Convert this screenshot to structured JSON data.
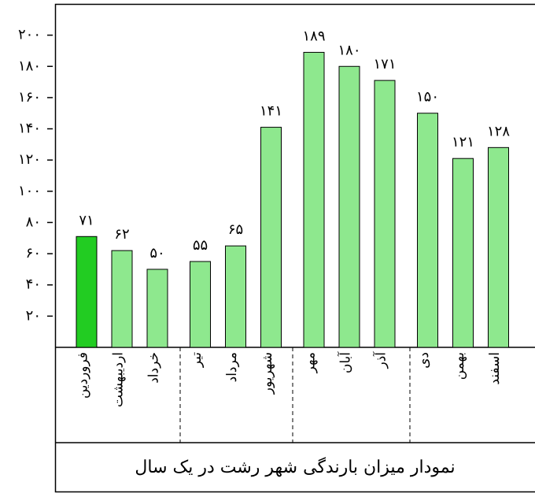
{
  "chart_data": {
    "type": "bar",
    "title": "نمودار میزان بارندگی شهر رشت در یک سال",
    "categories": [
      "فروردین",
      "اردیبهشت",
      "خرداد",
      "تیر",
      "مرداد",
      "شهریور",
      "مهر",
      "آبان",
      "آذر",
      "دی",
      "بهمن",
      "اسفند"
    ],
    "values": [
      71,
      62,
      50,
      55,
      65,
      141,
      189,
      180,
      171,
      150,
      121,
      128
    ],
    "value_labels": [
      "۷۱",
      "۶۲",
      "۵۰",
      "۵۵",
      "۶۵",
      "۱۴۱",
      "۱۸۹",
      "۱۸۰",
      "۱۷۱",
      "۱۵۰",
      "۱۲۱",
      "۱۲۸"
    ],
    "colors": [
      "#22cc22",
      "#8ee88e",
      "#8ee88e",
      "#8ee88e",
      "#8ee88e",
      "#8ee88e",
      "#8ee88e",
      "#8ee88e",
      "#8ee88e",
      "#8ee88e",
      "#8ee88e",
      "#8ee88e"
    ],
    "ylim": [
      0,
      220
    ],
    "yticks": [
      {
        "value": 20,
        "label": "۲۰"
      },
      {
        "value": 40,
        "label": "۴۰"
      },
      {
        "value": 60,
        "label": "۶۰"
      },
      {
        "value": 80,
        "label": "۸۰"
      },
      {
        "value": 100,
        "label": "۱۰۰"
      },
      {
        "value": 120,
        "label": "۱۲۰"
      },
      {
        "value": 140,
        "label": "۱۴۰"
      },
      {
        "value": 160,
        "label": "۱۶۰"
      },
      {
        "value": 180,
        "label": "۱۸۰"
      },
      {
        "value": 200,
        "label": "۲۰۰"
      }
    ]
  }
}
